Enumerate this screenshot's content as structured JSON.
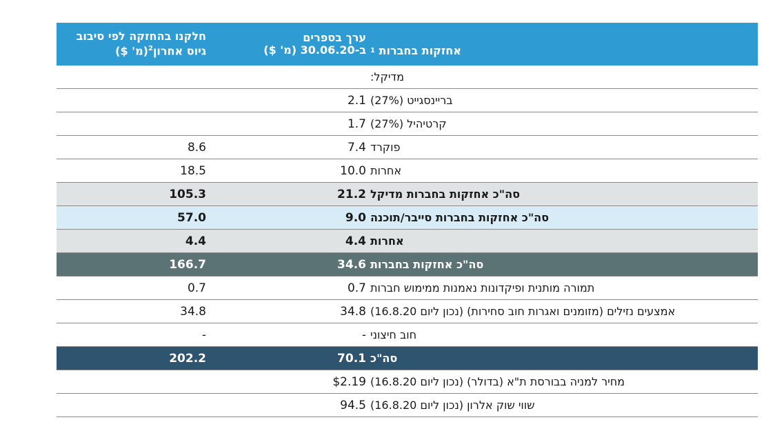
{
  "header": {
    "col_holdings": "אחזקות בחברות",
    "col_holdings_sup": "1",
    "col_book_line1": "ערך בספרים",
    "col_book_line2": "ב-30.06.20 (מ' $)",
    "col_share_line1": "חלקנו בהחזקה לפי סיבוב",
    "col_share_line2": "גיוס אחרון",
    "col_share_sup": "2",
    "col_share_line2_suffix": "(מ' $)"
  },
  "rows": [
    {
      "label": "מדיקל:",
      "book": "",
      "share": ""
    },
    {
      "label": "בריינסגייט (27%)",
      "book": "2.1",
      "share": ""
    },
    {
      "label": "קרטיהיל (27%)",
      "book": "1.7",
      "share": ""
    },
    {
      "label": "פוקרד",
      "book": "7.4",
      "share": "8.6"
    },
    {
      "label": "אחרות",
      "book": "10.0",
      "share": "18.5"
    },
    {
      "label": "סה\"כ אחזקות בחברות מדיקל",
      "book": "21.2",
      "share": "105.3"
    },
    {
      "label": "סה\"כ אחזקות בחברות סייבר/תוכנה",
      "book": "9.0",
      "share": "57.0"
    },
    {
      "label": "אחרות",
      "book": "4.4",
      "share": "4.4"
    },
    {
      "label": "סה\"כ אחזקות בחברות",
      "book": "34.6",
      "share": "166.7"
    },
    {
      "label": "תמורה מותנית ופיקדונות נאמנות ממימוש חברות",
      "book": "0.7",
      "share": "0.7"
    },
    {
      "label": "אמצעים נזילים (מזומנים ואגרות חוב סחירות) (נכון ליום 16.8.20)",
      "book": "34.8",
      "share": "34.8"
    },
    {
      "label": "חוב חיצוני",
      "book": "-",
      "share": "-"
    },
    {
      "label": "סה\"כ",
      "book": "70.1",
      "share": "202.2"
    },
    {
      "label": "מחיר למניה בבורסת ת\"א (בדולר) (נכון ליום 16.8.20)",
      "book": "$2.19",
      "share": ""
    },
    {
      "label": "שווי שוק אלרון (נכון ליום 16.8.20)",
      "book": "94.5",
      "share": ""
    }
  ],
  "colors": {
    "header_blue": "#2e9bd2",
    "grey_band": "#dfe3e4",
    "light_blue_band": "#d7ecf6",
    "dark_teal_band": "#5b7374",
    "navy_band": "#2f5470"
  }
}
